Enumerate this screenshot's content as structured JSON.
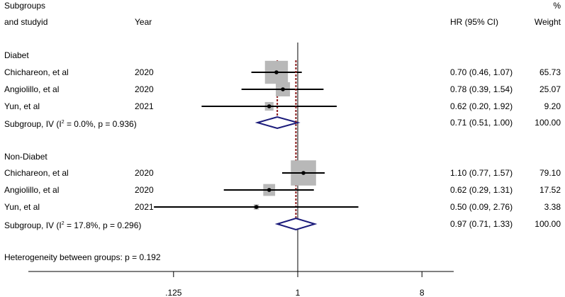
{
  "header": {
    "col1_line1": "Subgroups",
    "col1_line2": "and studyid",
    "year": "Year",
    "hr": "HR (95% CI)",
    "weight_line1": "%",
    "weight_line2": "Weight"
  },
  "heterogeneity": "Heterogeneity between groups: p = 0.192",
  "chart_data": {
    "type": "forest",
    "xscale": "log",
    "xticks": [
      0.125,
      1,
      8
    ],
    "xtick_labels": [
      ".125",
      "1",
      "8"
    ],
    "null_line": 1,
    "groups": [
      {
        "name": "Diabet",
        "studies": [
          {
            "label": "Chichareon, et al",
            "year": "2020",
            "hr": 0.7,
            "lo": 0.46,
            "hi": 1.07,
            "weight": 65.73,
            "text": "0.70 (0.46, 1.07)",
            "weight_text": "65.73"
          },
          {
            "label": "Angiolillo, et al",
            "year": "2020",
            "hr": 0.78,
            "lo": 0.39,
            "hi": 1.54,
            "weight": 25.07,
            "text": "0.78 (0.39, 1.54)",
            "weight_text": "25.07"
          },
          {
            "label": "Yun, et al",
            "year": "2021",
            "hr": 0.62,
            "lo": 0.2,
            "hi": 1.92,
            "weight": 9.2,
            "text": "0.62 (0.20, 1.92)",
            "weight_text": "9.20"
          }
        ],
        "subgroup": {
          "label_pre": "Subgroup, IV (I",
          "label_sup": "2",
          "label_post": " = 0.0%, p = 0.936)",
          "hr": 0.71,
          "lo": 0.51,
          "hi": 1.0,
          "text": "0.71 (0.51, 1.00)",
          "weight_text": "100.00"
        }
      },
      {
        "name": "Non-Diabet",
        "studies": [
          {
            "label": "Chichareon, et al",
            "year": "2020",
            "hr": 1.1,
            "lo": 0.77,
            "hi": 1.57,
            "weight": 79.1,
            "text": "1.10 (0.77, 1.57)",
            "weight_text": "79.10"
          },
          {
            "label": "Angiolillo, et al",
            "year": "2020",
            "hr": 0.62,
            "lo": 0.29,
            "hi": 1.31,
            "weight": 17.52,
            "text": "0.62 (0.29, 1.31)",
            "weight_text": "17.52"
          },
          {
            "label": "Yun, et al",
            "year": "2021",
            "hr": 0.5,
            "lo": 0.09,
            "hi": 2.76,
            "weight": 3.38,
            "text": "0.50 (0.09, 2.76)",
            "weight_text": "3.38"
          }
        ],
        "subgroup": {
          "label_pre": "Subgroup, IV (I",
          "label_sup": "2",
          "label_post": " = 17.8%, p = 0.296)",
          "hr": 0.97,
          "lo": 0.71,
          "hi": 1.33,
          "text": "0.97 (0.71, 1.33)",
          "weight_text": "100.00"
        }
      }
    ],
    "colors": {
      "box": "#b8b8b8",
      "ci": "#000000",
      "diamond": "#1a1a7a",
      "subgroup_line": "#8b1a1a"
    }
  }
}
